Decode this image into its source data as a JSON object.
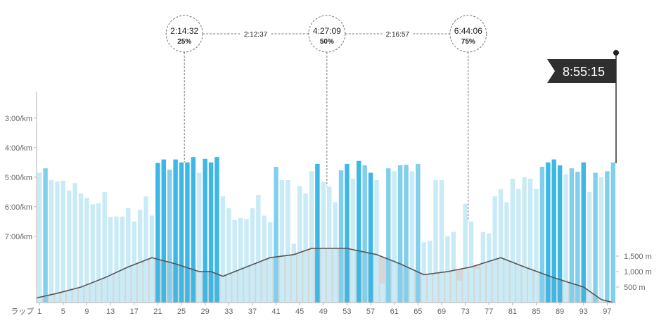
{
  "chart_data": {
    "type": "bar",
    "x_label_prefix": "ラップ",
    "x_tick_labels": [
      "1",
      "5",
      "9",
      "13",
      "17",
      "21",
      "25",
      "29",
      "33",
      "37",
      "41",
      "45",
      "49",
      "53",
      "57",
      "61",
      "65",
      "69",
      "73",
      "77",
      "81",
      "85",
      "89",
      "93",
      "97"
    ],
    "x_tick_laps": [
      1,
      5,
      9,
      13,
      17,
      21,
      25,
      29,
      33,
      37,
      41,
      45,
      49,
      53,
      57,
      61,
      65,
      69,
      73,
      77,
      81,
      85,
      89,
      93,
      97
    ],
    "pace_axis": {
      "unit": "min/km",
      "ticks": [
        "3:00/km",
        "4:00/km",
        "5:00/km",
        "6:00/km",
        "7:00/km"
      ],
      "tick_values": [
        3,
        4,
        5,
        6,
        7
      ],
      "range": [
        2.1,
        9.1
      ]
    },
    "elevation_axis": {
      "unit": "m",
      "ticks": [
        "1,500 m",
        "1,000 m",
        "500 m"
      ],
      "tick_values": [
        1500,
        1000,
        500
      ],
      "range": [
        0,
        2200
      ]
    },
    "laps": [
      {
        "lap": 1,
        "pace": 4.85,
        "intensity": "light"
      },
      {
        "lap": 2,
        "pace": 4.7,
        "intensity": "mid"
      },
      {
        "lap": 3,
        "pace": 5.1,
        "intensity": "light"
      },
      {
        "lap": 4,
        "pace": 5.15,
        "intensity": "light"
      },
      {
        "lap": 5,
        "pace": 5.12,
        "intensity": "light"
      },
      {
        "lap": 6,
        "pace": 5.45,
        "intensity": "light"
      },
      {
        "lap": 7,
        "pace": 5.2,
        "intensity": "light"
      },
      {
        "lap": 8,
        "pace": 5.55,
        "intensity": "light"
      },
      {
        "lap": 9,
        "pace": 5.7,
        "intensity": "light"
      },
      {
        "lap": 10,
        "pace": 5.92,
        "intensity": "light"
      },
      {
        "lap": 11,
        "pace": 5.88,
        "intensity": "light"
      },
      {
        "lap": 12,
        "pace": 5.5,
        "intensity": "light"
      },
      {
        "lap": 13,
        "pace": 6.35,
        "intensity": "light"
      },
      {
        "lap": 14,
        "pace": 6.33,
        "intensity": "light"
      },
      {
        "lap": 15,
        "pace": 6.33,
        "intensity": "light"
      },
      {
        "lap": 16,
        "pace": 6.05,
        "intensity": "light"
      },
      {
        "lap": 17,
        "pace": 6.5,
        "intensity": "light"
      },
      {
        "lap": 18,
        "pace": 6.1,
        "intensity": "light"
      },
      {
        "lap": 19,
        "pace": 5.65,
        "intensity": "light"
      },
      {
        "lap": 20,
        "pace": 6.3,
        "intensity": "light"
      },
      {
        "lap": 21,
        "pace": 4.52,
        "intensity": "dark"
      },
      {
        "lap": 22,
        "pace": 4.4,
        "intensity": "dark"
      },
      {
        "lap": 23,
        "pace": 4.75,
        "intensity": "mid"
      },
      {
        "lap": 24,
        "pace": 4.4,
        "intensity": "dark"
      },
      {
        "lap": 25,
        "pace": 4.5,
        "intensity": "dark"
      },
      {
        "lap": 26,
        "pace": 4.5,
        "intensity": "dark"
      },
      {
        "lap": 27,
        "pace": 4.32,
        "intensity": "dark"
      },
      {
        "lap": 28,
        "pace": 4.85,
        "intensity": "light"
      },
      {
        "lap": 29,
        "pace": 4.38,
        "intensity": "dark"
      },
      {
        "lap": 30,
        "pace": 4.5,
        "intensity": "dark"
      },
      {
        "lap": 31,
        "pace": 4.32,
        "intensity": "dark"
      },
      {
        "lap": 32,
        "pace": 5.65,
        "intensity": "light"
      },
      {
        "lap": 33,
        "pace": 6.05,
        "intensity": "light"
      },
      {
        "lap": 34,
        "pace": 6.45,
        "intensity": "light"
      },
      {
        "lap": 35,
        "pace": 6.38,
        "intensity": "light"
      },
      {
        "lap": 36,
        "pace": 6.42,
        "intensity": "light"
      },
      {
        "lap": 37,
        "pace": 6.05,
        "intensity": "light"
      },
      {
        "lap": 38,
        "pace": 5.6,
        "intensity": "light"
      },
      {
        "lap": 39,
        "pace": 6.3,
        "intensity": "light"
      },
      {
        "lap": 40,
        "pace": 6.52,
        "intensity": "light"
      },
      {
        "lap": 41,
        "pace": 4.65,
        "intensity": "mid"
      },
      {
        "lap": 42,
        "pace": 5.1,
        "intensity": "light"
      },
      {
        "lap": 43,
        "pace": 5.1,
        "intensity": "light"
      },
      {
        "lap": 44,
        "pace": 7.25,
        "intensity": "light"
      },
      {
        "lap": 45,
        "pace": 5.3,
        "intensity": "light"
      },
      {
        "lap": 46,
        "pace": 5.55,
        "intensity": "light"
      },
      {
        "lap": 47,
        "pace": 4.8,
        "intensity": "light"
      },
      {
        "lap": 48,
        "pace": 4.55,
        "intensity": "dark"
      },
      {
        "lap": 49,
        "pace": 5.15,
        "intensity": "light"
      },
      {
        "lap": 50,
        "pace": 5.32,
        "intensity": "light"
      },
      {
        "lap": 51,
        "pace": 5.85,
        "intensity": "light"
      },
      {
        "lap": 52,
        "pace": 4.77,
        "intensity": "mid"
      },
      {
        "lap": 53,
        "pace": 4.55,
        "intensity": "dark"
      },
      {
        "lap": 54,
        "pace": 5.05,
        "intensity": "light"
      },
      {
        "lap": 55,
        "pace": 4.45,
        "intensity": "dark"
      },
      {
        "lap": 56,
        "pace": 4.6,
        "intensity": "mid"
      },
      {
        "lap": 57,
        "pace": 4.85,
        "intensity": "dark"
      },
      {
        "lap": 58,
        "pace": 5.1,
        "intensity": "light"
      },
      {
        "lap": 59,
        "pace": 8.6,
        "intensity": "light"
      },
      {
        "lap": 60,
        "pace": 4.7,
        "intensity": "mid"
      },
      {
        "lap": 61,
        "pace": 4.8,
        "intensity": "light"
      },
      {
        "lap": 62,
        "pace": 4.6,
        "intensity": "mid"
      },
      {
        "lap": 63,
        "pace": 4.58,
        "intensity": "mid"
      },
      {
        "lap": 64,
        "pace": 4.8,
        "intensity": "light"
      },
      {
        "lap": 65,
        "pace": 4.55,
        "intensity": "mid"
      },
      {
        "lap": 66,
        "pace": 7.2,
        "intensity": "light"
      },
      {
        "lap": 67,
        "pace": 7.15,
        "intensity": "light"
      },
      {
        "lap": 68,
        "pace": 5.1,
        "intensity": "light"
      },
      {
        "lap": 69,
        "pace": 5.1,
        "intensity": "light"
      },
      {
        "lap": 70,
        "pace": 7.0,
        "intensity": "light"
      },
      {
        "lap": 71,
        "pace": 6.85,
        "intensity": "light"
      },
      {
        "lap": 72,
        "pace": 8.5,
        "intensity": "light"
      },
      {
        "lap": 73,
        "pace": 5.9,
        "intensity": "light"
      },
      {
        "lap": 74,
        "pace": 6.5,
        "intensity": "light"
      },
      {
        "lap": 75,
        "pace": 8.1,
        "intensity": "light"
      },
      {
        "lap": 76,
        "pace": 6.85,
        "intensity": "light"
      },
      {
        "lap": 77,
        "pace": 6.9,
        "intensity": "light"
      },
      {
        "lap": 78,
        "pace": 5.65,
        "intensity": "light"
      },
      {
        "lap": 79,
        "pace": 5.4,
        "intensity": "light"
      },
      {
        "lap": 80,
        "pace": 5.85,
        "intensity": "light"
      },
      {
        "lap": 81,
        "pace": 5.05,
        "intensity": "light"
      },
      {
        "lap": 82,
        "pace": 5.4,
        "intensity": "light"
      },
      {
        "lap": 83,
        "pace": 5.0,
        "intensity": "light"
      },
      {
        "lap": 84,
        "pace": 5.05,
        "intensity": "light"
      },
      {
        "lap": 85,
        "pace": 5.4,
        "intensity": "light"
      },
      {
        "lap": 86,
        "pace": 4.65,
        "intensity": "mid"
      },
      {
        "lap": 87,
        "pace": 4.5,
        "intensity": "dark"
      },
      {
        "lap": 88,
        "pace": 4.4,
        "intensity": "dark"
      },
      {
        "lap": 89,
        "pace": 4.6,
        "intensity": "dark"
      },
      {
        "lap": 90,
        "pace": 4.9,
        "intensity": "light"
      },
      {
        "lap": 91,
        "pace": 4.7,
        "intensity": "mid"
      },
      {
        "lap": 92,
        "pace": 4.82,
        "intensity": "mid"
      },
      {
        "lap": 93,
        "pace": 4.5,
        "intensity": "dark"
      },
      {
        "lap": 94,
        "pace": 5.5,
        "intensity": "light"
      },
      {
        "lap": 95,
        "pace": 4.85,
        "intensity": "mid"
      },
      {
        "lap": 96,
        "pace": 5.0,
        "intensity": "light"
      },
      {
        "lap": 97,
        "pace": 4.8,
        "intensity": "mid"
      },
      {
        "lap": 98,
        "pace": 4.5,
        "intensity": "mid"
      }
    ],
    "elevation_profile": [
      {
        "lap": 0.5,
        "elev": 150
      },
      {
        "lap": 4,
        "elev": 300
      },
      {
        "lap": 8,
        "elev": 500
      },
      {
        "lap": 12,
        "elev": 800
      },
      {
        "lap": 16,
        "elev": 1150
      },
      {
        "lap": 20,
        "elev": 1450
      },
      {
        "lap": 24,
        "elev": 1250
      },
      {
        "lap": 28,
        "elev": 1000
      },
      {
        "lap": 30,
        "elev": 1000
      },
      {
        "lap": 32,
        "elev": 850
      },
      {
        "lap": 36,
        "elev": 1150
      },
      {
        "lap": 40,
        "elev": 1450
      },
      {
        "lap": 44,
        "elev": 1550
      },
      {
        "lap": 47,
        "elev": 1750
      },
      {
        "lap": 53,
        "elev": 1750
      },
      {
        "lap": 58,
        "elev": 1550
      },
      {
        "lap": 62,
        "elev": 1250
      },
      {
        "lap": 66,
        "elev": 900
      },
      {
        "lap": 70,
        "elev": 1000
      },
      {
        "lap": 74,
        "elev": 1150
      },
      {
        "lap": 79,
        "elev": 1450
      },
      {
        "lap": 83,
        "elev": 1150
      },
      {
        "lap": 88,
        "elev": 800
      },
      {
        "lap": 93,
        "elev": 500
      },
      {
        "lap": 96,
        "elev": 100
      },
      {
        "lap": 98,
        "elev": 0
      }
    ],
    "milestones": [
      {
        "time": "2:14:32",
        "percent": "25%",
        "lap": 25.5
      },
      {
        "time": "4:27:09",
        "percent": "50%",
        "lap": 49.6
      },
      {
        "time": "6:44:06",
        "percent": "75%",
        "lap": 73.5
      }
    ],
    "splits": [
      "2:12:37",
      "2:16:57"
    ],
    "finish_time": "8:55:15",
    "colors": {
      "light": "#c9ebf6",
      "mid": "#80cfec",
      "dark": "#3db7e5",
      "elevation_fill": "#d6d6d6",
      "elevation_line": "#565656",
      "axis": "#b5b5b5",
      "label": "#666666",
      "flag_bg": "#2f2f2f",
      "flag_text": "#ffffff"
    }
  }
}
